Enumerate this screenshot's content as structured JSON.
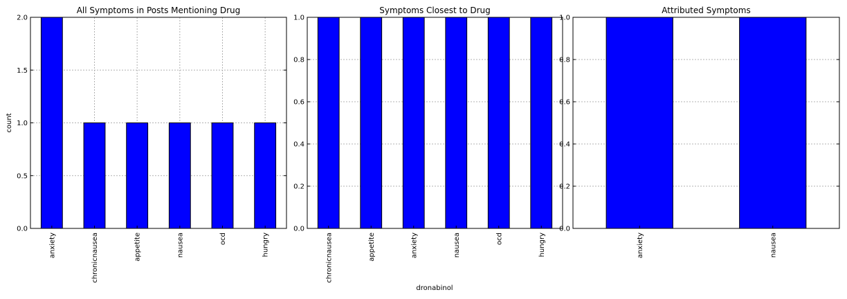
{
  "colors": {
    "bar": "#0000ff",
    "bar_edge": "#000000",
    "grid": "#b0b0b0",
    "axes": "#000000"
  },
  "figure_xlabel": "dronabinol",
  "chart_data": [
    {
      "type": "bar",
      "title": "All Symptoms in Posts Mentioning Drug",
      "ylabel": "count",
      "xlabel": "",
      "categories": [
        "anxiety",
        "chronicnausea",
        "appetite",
        "nausea",
        "ocd",
        "hungry"
      ],
      "values": [
        2,
        1,
        1,
        1,
        1,
        1
      ],
      "ylim": [
        0,
        2.0
      ],
      "yticks": [
        "0.0",
        "0.5",
        "1.0",
        "1.5",
        "2.0"
      ],
      "grid": true
    },
    {
      "type": "bar",
      "title": "Symptoms Closest to Drug",
      "ylabel": "",
      "xlabel": "dronabinol",
      "categories": [
        "chronicnausea",
        "appetite",
        "anxiety",
        "nausea",
        "ocd",
        "hungry"
      ],
      "values": [
        1,
        1,
        1,
        1,
        1,
        1
      ],
      "ylim": [
        0,
        1.0
      ],
      "yticks": [
        "0.0",
        "0.2",
        "0.4",
        "0.6",
        "0.8",
        "1.0"
      ],
      "grid": true
    },
    {
      "type": "bar",
      "title": "Attributed Symptoms",
      "ylabel": "",
      "xlabel": "",
      "categories": [
        "anxiety",
        "nausea"
      ],
      "values": [
        1,
        1
      ],
      "ylim": [
        0,
        1.0
      ],
      "yticks": [
        "0.0",
        "0.2",
        "0.4",
        "0.6",
        "0.8",
        "1.0"
      ],
      "grid": true
    }
  ]
}
